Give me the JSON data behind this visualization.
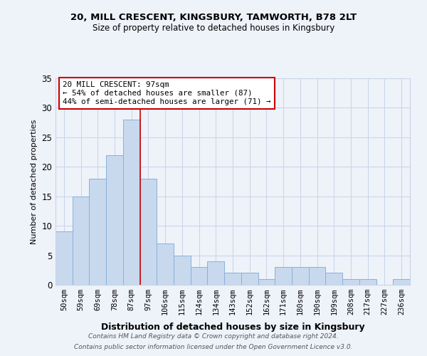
{
  "title1": "20, MILL CRESCENT, KINGSBURY, TAMWORTH, B78 2LT",
  "title2": "Size of property relative to detached houses in Kingsbury",
  "xlabel": "Distribution of detached houses by size in Kingsbury",
  "ylabel": "Number of detached properties",
  "categories": [
    "50sqm",
    "59sqm",
    "69sqm",
    "78sqm",
    "87sqm",
    "97sqm",
    "106sqm",
    "115sqm",
    "124sqm",
    "134sqm",
    "143sqm",
    "152sqm",
    "162sqm",
    "171sqm",
    "180sqm",
    "190sqm",
    "199sqm",
    "208sqm",
    "217sqm",
    "227sqm",
    "236sqm"
  ],
  "values": [
    9,
    15,
    18,
    22,
    28,
    18,
    7,
    5,
    3,
    4,
    2,
    2,
    1,
    3,
    3,
    3,
    2,
    1,
    1,
    0,
    1
  ],
  "bar_color": "#c8d9ee",
  "bar_edge_color": "#8ab0d8",
  "vline_x": 4.5,
  "vline_color": "#cc0000",
  "annotation_text": "20 MILL CRESCENT: 97sqm\n← 54% of detached houses are smaller (87)\n44% of semi-detached houses are larger (71) →",
  "annotation_box_color": "#ffffff",
  "annotation_box_edge": "#cc0000",
  "ylim": [
    0,
    35
  ],
  "yticks": [
    0,
    5,
    10,
    15,
    20,
    25,
    30,
    35
  ],
  "grid_color": "#c8d4e8",
  "footer1": "Contains HM Land Registry data © Crown copyright and database right 2024.",
  "footer2": "Contains public sector information licensed under the Open Government Licence v3.0.",
  "bg_color": "#eef2f9"
}
